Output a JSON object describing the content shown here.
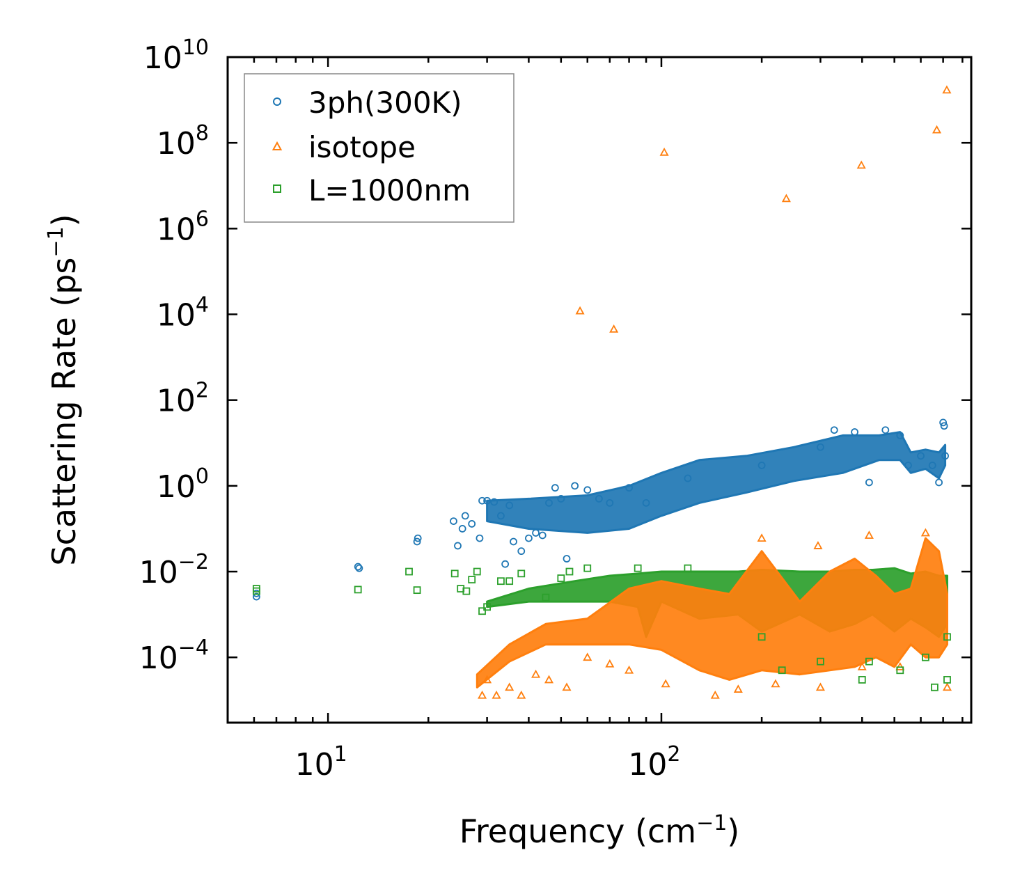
{
  "chart_data": {
    "type": "scatter",
    "title": "",
    "xlabel": "Frequency (cm",
    "xlabel_sup": "−1",
    "xlabel_end": ")",
    "ylabel": "Scattering Rate (ps",
    "ylabel_sup": "−1",
    "ylabel_end": ")",
    "xscale": "log",
    "yscale": "log",
    "xlim": [
      5.0,
      850
    ],
    "ylim": [
      3e-06,
      10000000000.0
    ],
    "x_ticks": [
      {
        "base": "10",
        "exp": "1",
        "value": 10
      },
      {
        "base": "10",
        "exp": "2",
        "value": 100
      }
    ],
    "y_ticks": [
      {
        "base": "10",
        "exp": "10",
        "value": 10000000000.0
      },
      {
        "base": "10",
        "exp": "8",
        "value": 100000000.0
      },
      {
        "base": "10",
        "exp": "6",
        "value": 1000000.0
      },
      {
        "base": "10",
        "exp": "4",
        "value": 10000.0
      },
      {
        "base": "10",
        "exp": "2",
        "value": 100.0
      },
      {
        "base": "10",
        "exp": "0",
        "value": 1
      },
      {
        "base": "10",
        "exp": "−2",
        "value": 0.01
      },
      {
        "base": "10",
        "exp": "−4",
        "value": 0.0001
      }
    ],
    "legend_position": "top-left",
    "series": [
      {
        "name": "3ph(300K)",
        "marker": "circle",
        "color": "#1f77b4",
        "points": [
          [
            6.1,
            0.0026
          ],
          [
            6.1,
            0.0031
          ],
          [
            12.3,
            0.013
          ],
          [
            12.4,
            0.012
          ],
          [
            18.5,
            0.05
          ],
          [
            18.6,
            0.06
          ],
          [
            23.8,
            0.15
          ],
          [
            24.5,
            0.04
          ],
          [
            25.3,
            0.1
          ],
          [
            25.8,
            0.2
          ],
          [
            27.0,
            0.13
          ],
          [
            28.5,
            0.06
          ],
          [
            29.0,
            0.45
          ],
          [
            30.0,
            0.45
          ],
          [
            31.5,
            0.42
          ],
          [
            33,
            0.2
          ],
          [
            34,
            0.015
          ],
          [
            35,
            0.35
          ],
          [
            36,
            0.05
          ],
          [
            38,
            0.03
          ],
          [
            40,
            0.06
          ],
          [
            42,
            0.08
          ],
          [
            44,
            0.07
          ],
          [
            46,
            0.4
          ],
          [
            48,
            0.9
          ],
          [
            50,
            0.5
          ],
          [
            52,
            0.02
          ],
          [
            55,
            1.0
          ],
          [
            60,
            0.8
          ],
          [
            65,
            0.5
          ],
          [
            70,
            0.4
          ],
          [
            80,
            0.9
          ],
          [
            90,
            0.4
          ],
          [
            120,
            1.5
          ],
          [
            200,
            3
          ],
          [
            300,
            8
          ],
          [
            330,
            20
          ],
          [
            380,
            18
          ],
          [
            420,
            1.2
          ],
          [
            470,
            20
          ],
          [
            520,
            15
          ],
          [
            550,
            3
          ],
          [
            600,
            5
          ],
          [
            650,
            3
          ],
          [
            680,
            1.2
          ],
          [
            700,
            30
          ],
          [
            705,
            25
          ],
          [
            710,
            5
          ]
        ],
        "band_low": [
          [
            30,
            0.15
          ],
          [
            40,
            0.1
          ],
          [
            60,
            0.08
          ],
          [
            80,
            0.1
          ],
          [
            100,
            0.2
          ],
          [
            130,
            0.4
          ],
          [
            180,
            0.7
          ],
          [
            250,
            1.3
          ],
          [
            350,
            2
          ],
          [
            450,
            4
          ],
          [
            520,
            4
          ],
          [
            560,
            2
          ],
          [
            620,
            2.5
          ],
          [
            680,
            1.5
          ],
          [
            710,
            3
          ]
        ],
        "band_high": [
          [
            30,
            0.45
          ],
          [
            40,
            0.5
          ],
          [
            60,
            0.6
          ],
          [
            80,
            1.0
          ],
          [
            100,
            2
          ],
          [
            130,
            4
          ],
          [
            180,
            5
          ],
          [
            250,
            8
          ],
          [
            350,
            15
          ],
          [
            450,
            15
          ],
          [
            520,
            18
          ],
          [
            560,
            6
          ],
          [
            620,
            7
          ],
          [
            680,
            6
          ],
          [
            710,
            9
          ]
        ]
      },
      {
        "name": "isotope",
        "marker": "triangle",
        "color": "#ff7f0e",
        "points": [
          [
            57,
            12000
          ],
          [
            72,
            4500
          ],
          [
            102,
            60000000
          ],
          [
            237,
            5000000
          ],
          [
            398,
            30000000
          ],
          [
            670,
            200000000
          ],
          [
            718,
            1700000000
          ],
          [
            29,
            1.3e-05
          ],
          [
            30,
            3e-05
          ],
          [
            32,
            1.3e-05
          ],
          [
            35,
            2e-05
          ],
          [
            38,
            1.3e-05
          ],
          [
            42,
            4e-05
          ],
          [
            46,
            3e-05
          ],
          [
            52,
            2e-05
          ],
          [
            60,
            0.0001
          ],
          [
            70,
            7e-05
          ],
          [
            80,
            5e-05
          ],
          [
            103,
            2.4e-05
          ],
          [
            145,
            1.3e-05
          ],
          [
            170,
            1.8e-05
          ],
          [
            220,
            2.4e-05
          ],
          [
            300,
            2e-05
          ],
          [
            400,
            6e-05
          ],
          [
            520,
            6e-05
          ],
          [
            720,
            2e-05
          ],
          [
            200,
            0.06
          ],
          [
            295,
            0.04
          ],
          [
            420,
            0.07
          ],
          [
            620,
            0.08
          ]
        ],
        "band_low": [
          [
            28,
            2e-05
          ],
          [
            35,
            8e-05
          ],
          [
            45,
            0.0002
          ],
          [
            60,
            0.0002
          ],
          [
            80,
            0.0002
          ],
          [
            100,
            0.00015
          ],
          [
            130,
            5e-05
          ],
          [
            160,
            3e-05
          ],
          [
            200,
            5e-05
          ],
          [
            260,
            4e-05
          ],
          [
            320,
            5e-05
          ],
          [
            380,
            6e-05
          ],
          [
            440,
            0.0001
          ],
          [
            500,
            6e-05
          ],
          [
            560,
            0.0002
          ],
          [
            620,
            0.0001
          ],
          [
            680,
            0.0001
          ],
          [
            720,
            0.0002
          ]
        ],
        "band_high": [
          [
            28,
            4e-05
          ],
          [
            35,
            0.0002
          ],
          [
            45,
            0.0006
          ],
          [
            60,
            0.0008
          ],
          [
            80,
            0.004
          ],
          [
            100,
            0.006
          ],
          [
            130,
            0.004
          ],
          [
            160,
            0.003
          ],
          [
            200,
            0.03
          ],
          [
            260,
            0.002
          ],
          [
            320,
            0.01
          ],
          [
            380,
            0.02
          ],
          [
            440,
            0.008
          ],
          [
            500,
            0.003
          ],
          [
            560,
            0.004
          ],
          [
            620,
            0.06
          ],
          [
            680,
            0.03
          ],
          [
            720,
            0.003
          ]
        ]
      },
      {
        "name": "L=1000nm",
        "marker": "square",
        "color": "#2ca02c",
        "points": [
          [
            6.1,
            0.0035
          ],
          [
            6.1,
            0.004
          ],
          [
            12.3,
            0.0038
          ],
          [
            17.5,
            0.01
          ],
          [
            18.5,
            0.0037
          ],
          [
            24,
            0.009
          ],
          [
            25,
            0.004
          ],
          [
            26,
            0.0035
          ],
          [
            27,
            0.0065
          ],
          [
            28,
            0.01
          ],
          [
            29,
            0.0012
          ],
          [
            30,
            0.0015
          ],
          [
            33,
            0.006
          ],
          [
            35,
            0.006
          ],
          [
            38,
            0.009
          ],
          [
            45,
            0.0025
          ],
          [
            50,
            0.007
          ],
          [
            53,
            0.01
          ],
          [
            60,
            0.012
          ],
          [
            85,
            0.012
          ],
          [
            120,
            0.012
          ],
          [
            200,
            0.0003
          ],
          [
            230,
            5e-05
          ],
          [
            300,
            8e-05
          ],
          [
            400,
            3e-05
          ],
          [
            420,
            8e-05
          ],
          [
            520,
            5e-05
          ],
          [
            620,
            0.0001
          ],
          [
            660,
            2e-05
          ],
          [
            720,
            3e-05
          ],
          [
            720,
            0.0003
          ]
        ],
        "band_low": [
          [
            30,
            0.0015
          ],
          [
            40,
            0.002
          ],
          [
            55,
            0.002
          ],
          [
            70,
            0.002
          ],
          [
            85,
            0.0015
          ],
          [
            90,
            0.0003
          ],
          [
            100,
            0.002
          ],
          [
            130,
            0.0008
          ],
          [
            170,
            0.001
          ],
          [
            200,
            0.0004
          ],
          [
            260,
            0.001
          ],
          [
            320,
            0.0004
          ],
          [
            380,
            0.0006
          ],
          [
            430,
            0.001
          ],
          [
            500,
            0.0004
          ],
          [
            560,
            0.0008
          ],
          [
            620,
            0.0005
          ],
          [
            680,
            0.0003
          ],
          [
            720,
            0.0006
          ]
        ],
        "band_high": [
          [
            30,
            0.002
          ],
          [
            40,
            0.004
          ],
          [
            55,
            0.006
          ],
          [
            70,
            0.008
          ],
          [
            85,
            0.009
          ],
          [
            100,
            0.01
          ],
          [
            130,
            0.01
          ],
          [
            170,
            0.01
          ],
          [
            200,
            0.011
          ],
          [
            260,
            0.01
          ],
          [
            320,
            0.01
          ],
          [
            380,
            0.011
          ],
          [
            430,
            0.011
          ],
          [
            500,
            0.012
          ],
          [
            560,
            0.009
          ],
          [
            620,
            0.01
          ],
          [
            680,
            0.008
          ],
          [
            720,
            0.008
          ]
        ]
      }
    ]
  }
}
